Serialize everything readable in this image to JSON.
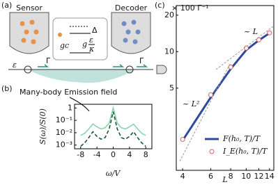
{
  "panels": [
    "(a)",
    "(b)",
    "(c)"
  ],
  "diagram": {
    "sensor": "Sensor",
    "decoder": "Decoder",
    "delta": "Δ",
    "gc": "gc",
    "g": "g",
    "eps_num": "ε",
    "kappa": "κ",
    "epsilon": "ε",
    "gamma_left": "Γ",
    "gamma_right": "Γ",
    "emission": "Many-body Emission field"
  },
  "chart_data": [
    {
      "type": "line",
      "xlabel": "ω/V",
      "ylabel": "S(ω)/S(0)",
      "log_y": true,
      "x": [
        -8,
        -7,
        -6,
        -5,
        -4,
        -3,
        -2,
        -1,
        0,
        1,
        2,
        3,
        4,
        5,
        6,
        7,
        8
      ],
      "series": [
        {
          "color": "#8fd1b0",
          "style": "solid",
          "values": [
            0.006,
            0.009,
            0.02,
            0.05,
            0.03,
            0.02,
            0.025,
            0.06,
            1,
            0.06,
            0.025,
            0.02,
            0.03,
            0.05,
            0.02,
            0.009,
            0.006
          ]
        },
        {
          "color": "#145a32",
          "style": "dashed",
          "values": [
            0.0008,
            0.0015,
            0.004,
            0.012,
            0.005,
            0.003,
            0.004,
            0.02,
            0.5,
            0.02,
            0.004,
            0.003,
            0.005,
            0.012,
            0.004,
            0.0015,
            0.0008
          ]
        }
      ],
      "xlim": [
        -9.5,
        9.5
      ],
      "xticks": [
        -8,
        -4,
        0,
        4,
        8
      ],
      "ylim": [
        0.0005,
        2
      ],
      "yticks": [
        1,
        {
          "value": 0.1,
          "label": "10⁻¹"
        },
        {
          "value": 0.01,
          "label": "10⁻²"
        },
        {
          "value": 0.001,
          "label": "10⁻³"
        }
      ]
    },
    {
      "type": "line",
      "xlabel": "L",
      "ylabel": "× 100 Γ⁻¹",
      "log_x": true,
      "log_y": true,
      "x": [
        4,
        6,
        8,
        10,
        12,
        14
      ],
      "series": [
        {
          "name": "F(h₀, T)/T",
          "color": "#2e4a9e",
          "style": "solid",
          "values": [
            1.85,
            4.2,
            7.2,
            10.3,
            12.4,
            14.2
          ]
        },
        {
          "name": "I_E(h₀, T)/T",
          "color": "#e06060",
          "style": "marker",
          "values": [
            1.89,
            4.4,
            7.46,
            10.7,
            12.5,
            14.3
          ]
        }
      ],
      "xlim": [
        3.65,
        14.9
      ],
      "xticks": [
        4,
        6,
        8,
        10,
        12,
        14
      ],
      "ylim": [
        1.05,
        24
      ],
      "yticks": [
        5,
        10,
        20
      ],
      "annotations": [
        "~ L²",
        "~ L"
      ],
      "legend": "lower right"
    }
  ]
}
